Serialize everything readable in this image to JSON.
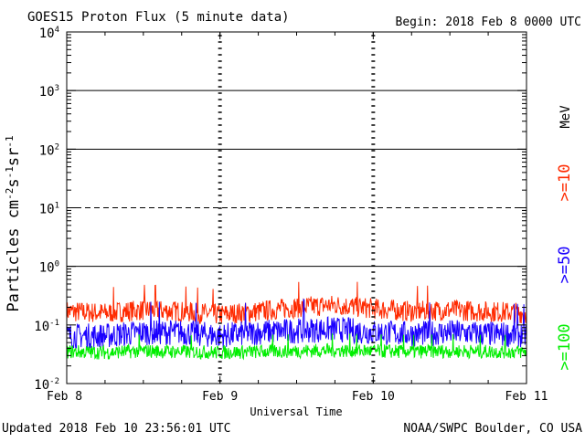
{
  "header": {
    "title": "GOES15 Proton Flux (5 minute data)",
    "begin": "Begin: 2018 Feb 8 0000 UTC"
  },
  "footer": {
    "updated": "Updated 2018 Feb 10 23:56:01 UTC",
    "credit": "NOAA/SWPC Boulder, CO USA"
  },
  "chart_data": {
    "type": "line",
    "title": "GOES15 Proton Flux (5 minute data)",
    "xlabel": "Universal Time",
    "ylabel_parts": [
      "Particles cm",
      "-2",
      "s",
      "-1",
      "sr",
      "-1"
    ],
    "y_scale": "log",
    "ylim": [
      0.01,
      10000
    ],
    "y_ticks": [
      {
        "value": 10000,
        "base": "10",
        "exp": "4"
      },
      {
        "value": 1000,
        "base": "10",
        "exp": "3"
      },
      {
        "value": 100,
        "base": "10",
        "exp": "2"
      },
      {
        "value": 10,
        "base": "10",
        "exp": "1"
      },
      {
        "value": 1,
        "base": "10",
        "exp": "0"
      },
      {
        "value": 0.1,
        "base": "10",
        "exp": "-1"
      },
      {
        "value": 0.01,
        "base": "10",
        "exp": "-2"
      }
    ],
    "x_range_days": [
      0,
      3
    ],
    "x_ticks": [
      {
        "day": 0,
        "label": "Feb 8"
      },
      {
        "day": 1,
        "label": "Feb 9"
      },
      {
        "day": 2,
        "label": "Feb 10"
      },
      {
        "day": 3,
        "label": "Feb 11"
      }
    ],
    "threshold_lines": [
      {
        "value": 1000,
        "style": "solid"
      },
      {
        "value": 100,
        "style": "solid"
      },
      {
        "value": 10,
        "style": "dashed"
      },
      {
        "value": 1,
        "style": "solid"
      }
    ],
    "legend_placement": "right",
    "legend_unit": "MeV",
    "series": [
      {
        "name": ">=10",
        "color": "#ff2a00",
        "x_days": [
          0,
          0.25,
          0.5,
          0.75,
          1,
          1.25,
          1.5,
          1.75,
          2,
          2.25,
          2.5,
          2.75,
          3
        ],
        "values": [
          0.17,
          0.16,
          0.18,
          0.17,
          0.15,
          0.17,
          0.2,
          0.22,
          0.19,
          0.17,
          0.18,
          0.17,
          0.16
        ]
      },
      {
        "name": ">=50",
        "color": "#1a00ff",
        "x_days": [
          0,
          0.25,
          0.5,
          0.75,
          1,
          1.25,
          1.5,
          1.75,
          2,
          2.25,
          2.5,
          2.75,
          3
        ],
        "values": [
          0.065,
          0.065,
          0.075,
          0.075,
          0.065,
          0.075,
          0.08,
          0.085,
          0.075,
          0.07,
          0.075,
          0.07,
          0.068
        ]
      },
      {
        "name": ">=100",
        "color": "#00ee00",
        "x_days": [
          0,
          0.25,
          0.5,
          0.75,
          1,
          1.25,
          1.5,
          1.75,
          2,
          2.25,
          2.5,
          2.75,
          3
        ],
        "values": [
          0.035,
          0.034,
          0.036,
          0.035,
          0.034,
          0.035,
          0.036,
          0.037,
          0.036,
          0.035,
          0.036,
          0.035,
          0.035
        ]
      }
    ]
  }
}
